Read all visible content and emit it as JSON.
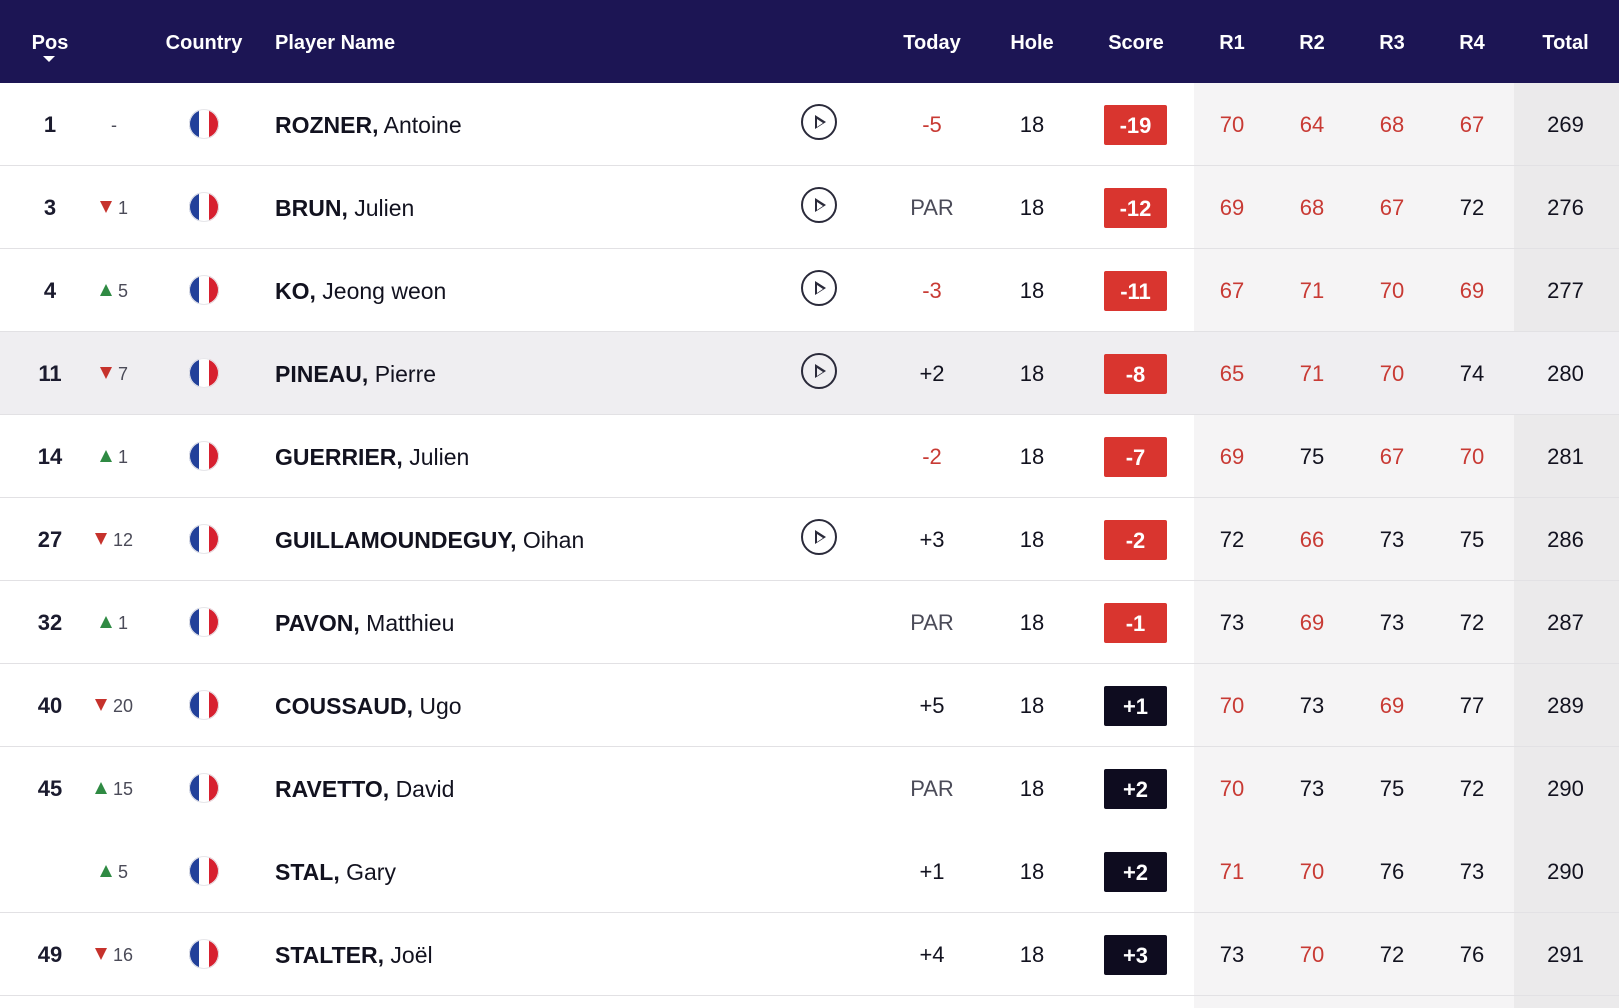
{
  "colors": {
    "header_bg": "#1c1554",
    "under_par": "#d9352f",
    "over_par": "#0e0c1f",
    "under_par_text": "#c83a34",
    "move_up": "#2f8a43",
    "move_down": "#c6322c"
  },
  "header": {
    "pos": "Pos",
    "country": "Country",
    "player_name": "Player Name",
    "today": "Today",
    "hole": "Hole",
    "score": "Score",
    "r1": "R1",
    "r2": "R2",
    "r3": "R3",
    "r4": "R4",
    "total": "Total"
  },
  "rows": [
    {
      "pos": "1",
      "move_dir": "none",
      "move": "-",
      "country": "France",
      "last": "ROZNER,",
      "first": "Antoine",
      "video": true,
      "today": "-5",
      "today_under": true,
      "hole": "18",
      "score": "-19",
      "score_under": true,
      "r1": "70",
      "r1_under": true,
      "r2": "64",
      "r2_under": true,
      "r3": "68",
      "r3_under": true,
      "r4": "67",
      "r4_under": true,
      "total": "269"
    },
    {
      "pos": "3",
      "move_dir": "down",
      "move": "1",
      "country": "France",
      "last": "BRUN,",
      "first": "Julien",
      "video": true,
      "today": "PAR",
      "today_under": false,
      "hole": "18",
      "score": "-12",
      "score_under": true,
      "r1": "69",
      "r1_under": true,
      "r2": "68",
      "r2_under": true,
      "r3": "67",
      "r3_under": true,
      "r4": "72",
      "r4_under": false,
      "total": "276"
    },
    {
      "pos": "4",
      "move_dir": "up",
      "move": "5",
      "country": "France",
      "last": "KO,",
      "first": "Jeong weon",
      "video": true,
      "today": "-3",
      "today_under": true,
      "hole": "18",
      "score": "-11",
      "score_under": true,
      "r1": "67",
      "r1_under": true,
      "r2": "71",
      "r2_under": true,
      "r3": "70",
      "r3_under": true,
      "r4": "69",
      "r4_under": true,
      "total": "277"
    },
    {
      "pos": "11",
      "move_dir": "down",
      "move": "7",
      "country": "France",
      "last": "PINEAU,",
      "first": "Pierre",
      "video": true,
      "today": "+2",
      "today_under": false,
      "hole": "18",
      "score": "-8",
      "score_under": true,
      "r1": "65",
      "r1_under": true,
      "r2": "71",
      "r2_under": true,
      "r3": "70",
      "r3_under": true,
      "r4": "74",
      "r4_under": false,
      "total": "280"
    },
    {
      "pos": "14",
      "move_dir": "up",
      "move": "1",
      "country": "France",
      "last": "GUERRIER,",
      "first": "Julien",
      "video": false,
      "today": "-2",
      "today_under": true,
      "hole": "18",
      "score": "-7",
      "score_under": true,
      "r1": "69",
      "r1_under": true,
      "r2": "75",
      "r2_under": false,
      "r3": "67",
      "r3_under": true,
      "r4": "70",
      "r4_under": true,
      "total": "281"
    },
    {
      "pos": "27",
      "move_dir": "down",
      "move": "12",
      "country": "France",
      "last": "GUILLAMOUNDEGUY,",
      "first": "Oihan",
      "video": true,
      "today": "+3",
      "today_under": false,
      "hole": "18",
      "score": "-2",
      "score_under": true,
      "r1": "72",
      "r1_under": false,
      "r2": "66",
      "r2_under": true,
      "r3": "73",
      "r3_under": false,
      "r4": "75",
      "r4_under": false,
      "total": "286"
    },
    {
      "pos": "32",
      "move_dir": "up",
      "move": "1",
      "country": "France",
      "last": "PAVON,",
      "first": "Matthieu",
      "video": false,
      "today": "PAR",
      "today_under": false,
      "hole": "18",
      "score": "-1",
      "score_under": true,
      "r1": "73",
      "r1_under": false,
      "r2": "69",
      "r2_under": true,
      "r3": "73",
      "r3_under": false,
      "r4": "72",
      "r4_under": false,
      "total": "287"
    },
    {
      "pos": "40",
      "move_dir": "down",
      "move": "20",
      "country": "France",
      "last": "COUSSAUD,",
      "first": "Ugo",
      "video": false,
      "today": "+5",
      "today_under": false,
      "hole": "18",
      "score": "+1",
      "score_under": false,
      "r1": "70",
      "r1_under": true,
      "r2": "73",
      "r2_under": false,
      "r3": "69",
      "r3_under": true,
      "r4": "77",
      "r4_under": false,
      "total": "289"
    },
    {
      "pos": "45",
      "move_dir": "up",
      "move": "15",
      "country": "France",
      "last": "RAVETTO,",
      "first": "David",
      "video": false,
      "today": "PAR",
      "today_under": false,
      "hole": "18",
      "score": "+2",
      "score_under": false,
      "r1": "70",
      "r1_under": true,
      "r2": "73",
      "r2_under": false,
      "r3": "75",
      "r3_under": false,
      "r4": "72",
      "r4_under": false,
      "total": "290"
    },
    {
      "pos": "",
      "move_dir": "up",
      "move": "5",
      "country": "France",
      "last": "STAL,",
      "first": "Gary",
      "video": false,
      "today": "+1",
      "today_under": false,
      "hole": "18",
      "score": "+2",
      "score_under": false,
      "r1": "71",
      "r1_under": true,
      "r2": "70",
      "r2_under": true,
      "r3": "76",
      "r3_under": false,
      "r4": "73",
      "r4_under": false,
      "total": "290"
    },
    {
      "pos": "49",
      "move_dir": "down",
      "move": "16",
      "country": "France",
      "last": "STALTER,",
      "first": "Joël",
      "video": false,
      "today": "+4",
      "today_under": false,
      "hole": "18",
      "score": "+3",
      "score_under": false,
      "r1": "73",
      "r1_under": false,
      "r2": "70",
      "r2_under": true,
      "r3": "72",
      "r3_under": false,
      "r4": "76",
      "r4_under": false,
      "total": "291"
    }
  ]
}
